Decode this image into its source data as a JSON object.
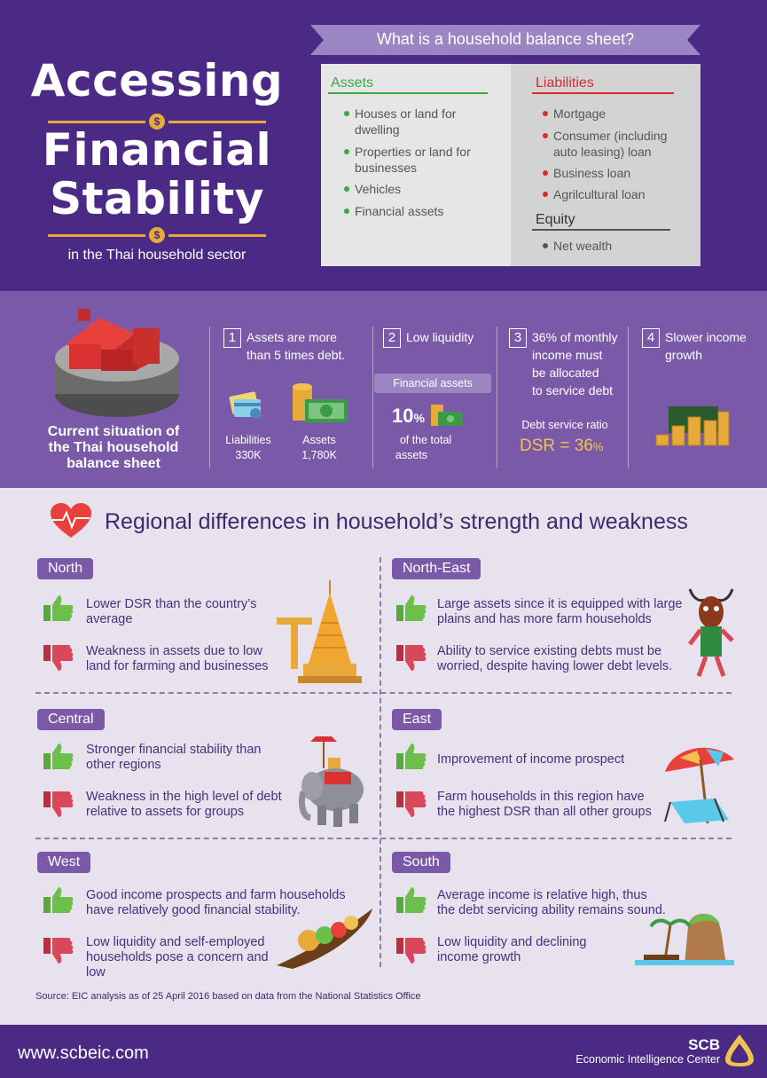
{
  "header": {
    "title_line1": "Accessing",
    "title_line2": "Financial",
    "title_line3": "Stability",
    "subtitle": "in the Thai household sector",
    "coin_symbol": "$"
  },
  "balance_sheet": {
    "question": "What is a household balance sheet?",
    "assets_heading": "Assets",
    "assets": [
      "Houses or land for",
      "dwelling",
      "Properties or land for",
      "businesses",
      "Vehicles",
      "Financial assets"
    ],
    "liabilities_heading": "Liabilities",
    "liabilities": [
      "Mortgage",
      "Consumer (including",
      "auto leasing) loan",
      "Business loan",
      "Agrilcultural loan"
    ],
    "equity_heading": "Equity",
    "equity": [
      "Net wealth"
    ]
  },
  "current": {
    "label": [
      "Current situation of",
      "the Thai household",
      "balance sheet"
    ],
    "item1": {
      "num": "1",
      "text": [
        "Assets are more",
        "than 5 times debt."
      ],
      "liab_label": "Liabilities",
      "liab_value": "330K",
      "assets_label": "Assets",
      "assets_value": "1,780K"
    },
    "item2": {
      "num": "2",
      "text": "Low liquidity",
      "pill": "Financial assets",
      "pct_num": "10",
      "pct_sign": "%",
      "caption": [
        "of the total",
        "assets"
      ]
    },
    "item3": {
      "num": "3",
      "text": [
        "36% of monthly",
        "income must",
        "be allocated",
        "to service debt"
      ],
      "ratio_label": "Debt service ratio",
      "dsr_text": "DSR = 36",
      "dsr_pct": "%"
    },
    "item4": {
      "num": "4",
      "text": [
        "Slower income",
        "growth"
      ]
    }
  },
  "regional": {
    "title": "Regional differences in household’s strength and weakness",
    "north": {
      "label": "North",
      "good": [
        "Lower DSR than the country’s",
        "average"
      ],
      "bad": [
        "Weakness in assets due to low",
        "land  for farming and businesses"
      ]
    },
    "northeast": {
      "label": "North-East",
      "good": [
        "Large assets since it is equipped with large",
        "plains and has more farm households"
      ],
      "bad": [
        "Ability to service existing debts must be",
        "worried, despite having lower debt levels."
      ]
    },
    "central": {
      "label": "Central",
      "good": [
        "Stronger financial stability than",
        "other regions"
      ],
      "bad": [
        "Weakness in the high level of debt",
        "relative to assets for groups"
      ]
    },
    "east": {
      "label": "East",
      "good": [
        "Improvement of income prospect"
      ],
      "bad": [
        "Farm households in this region have",
        "the highest DSR than all other groups"
      ]
    },
    "west": {
      "label": "West",
      "good": [
        "Good income prospects and farm households",
        "have relatively good financial stability."
      ],
      "bad": [
        "Low liquidity and self-employed",
        "households pose a concern and",
        "low"
      ]
    },
    "south": {
      "label": "South",
      "good": [
        "Average income is relative high, thus",
        "the debt servicing ability remains sound."
      ],
      "bad": [
        "Low liquidity and declining",
        "income growth"
      ]
    }
  },
  "source": "Source: EIC analysis as of 25 April 2016 based on data from the National Statistics Office",
  "footer": {
    "website": "www.scbeic.com",
    "brand": "SCB",
    "center": "Economic Intelligence Center"
  },
  "colors": {
    "purple_dark": "#4b2a86",
    "purple_mid": "#7a5aa8",
    "green": "#3aa845",
    "red": "#d92b2b",
    "gold": "#e7a93a"
  }
}
